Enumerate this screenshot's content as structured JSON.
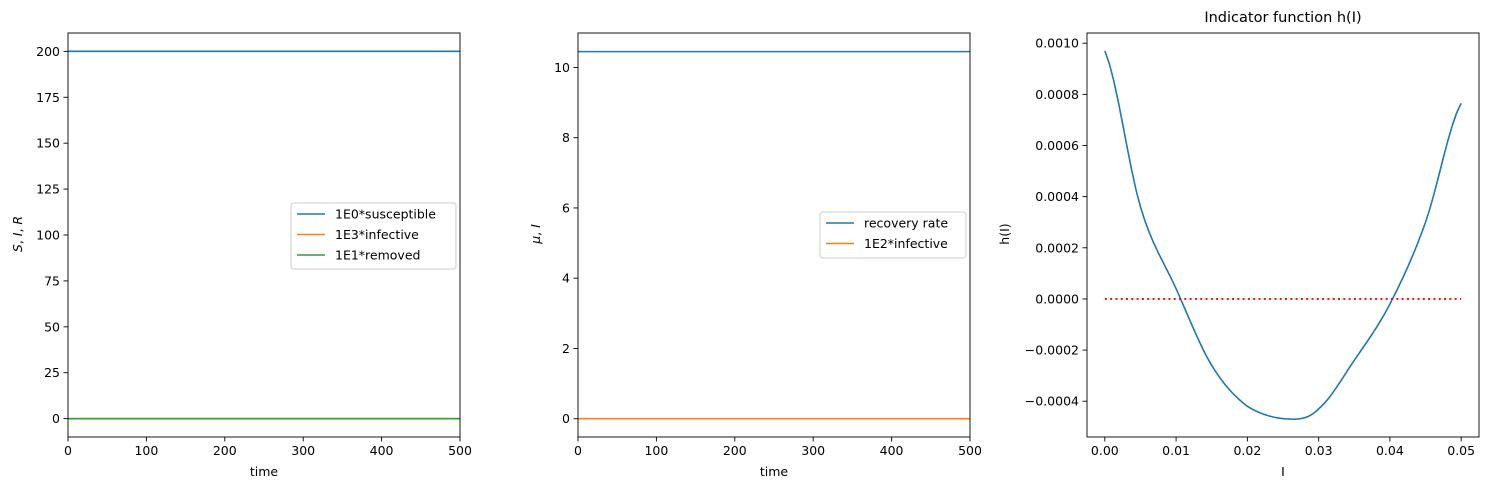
{
  "chart_data": [
    {
      "type": "line",
      "title": "",
      "xlabel": "time",
      "ylabel": "S, I, R",
      "xlim": [
        0,
        500
      ],
      "ylim": [
        -10,
        210
      ],
      "xticks": [
        0,
        100,
        200,
        300,
        400,
        500
      ],
      "yticks": [
        0,
        25,
        50,
        75,
        100,
        125,
        150,
        175,
        200
      ],
      "legend": "center-right",
      "series": [
        {
          "name": "1E0*susceptible",
          "color": "#1f77b4",
          "x": [
            0,
            500
          ],
          "y": [
            200,
            200
          ]
        },
        {
          "name": "1E3*infective",
          "color": "#ff7f0e",
          "x": [
            0,
            500
          ],
          "y": [
            0,
            0
          ]
        },
        {
          "name": "1E1*removed",
          "color": "#2ca02c",
          "x": [
            0,
            500
          ],
          "y": [
            0,
            0
          ]
        }
      ]
    },
    {
      "type": "line",
      "title": "",
      "xlabel": "time",
      "ylabel": "μ, I",
      "xlim": [
        0,
        500
      ],
      "ylim": [
        -0.52,
        10.98
      ],
      "xticks": [
        0,
        100,
        200,
        300,
        400,
        500
      ],
      "yticks": [
        0,
        2,
        4,
        6,
        8,
        10
      ],
      "legend": "center-right",
      "series": [
        {
          "name": "recovery rate",
          "color": "#1f77b4",
          "x": [
            0,
            500
          ],
          "y": [
            10.45,
            10.45
          ]
        },
        {
          "name": "1E2*infective",
          "color": "#ff7f0e",
          "x": [
            0,
            500
          ],
          "y": [
            0,
            0
          ]
        }
      ]
    },
    {
      "type": "line",
      "title": "Indicator function h(I)",
      "xlabel": "I",
      "ylabel": "h(I)",
      "xlim": [
        -0.0025,
        0.0525
      ],
      "ylim": [
        -0.00054,
        0.00104
      ],
      "xticks": [
        0.0,
        0.01,
        0.02,
        0.03,
        0.04,
        0.05
      ],
      "xtick_labels": [
        "0.00",
        "0.01",
        "0.02",
        "0.03",
        "0.04",
        "0.05"
      ],
      "yticks": [
        -0.0004,
        -0.0002,
        0.0,
        0.0002,
        0.0004,
        0.0006,
        0.0008,
        0.001
      ],
      "ytick_labels": [
        "−0.0004",
        "−0.0002",
        "0.0000",
        "0.0002",
        "0.0004",
        "0.0006",
        "0.0008",
        "0.0010"
      ],
      "legend": "none",
      "series": [
        {
          "name": "",
          "color": "#1f77b4",
          "x": [
            0.0,
            0.005,
            0.01,
            0.015,
            0.02,
            0.026,
            0.03,
            0.035,
            0.04,
            0.045,
            0.05
          ],
          "y": [
            0.00097,
            0.00036,
            4e-05,
            -0.00026,
            -0.00042,
            -0.00047,
            -0.00043,
            -0.00024,
            -2e-05,
            0.0003,
            0.000765
          ]
        },
        {
          "name": "",
          "color": "#ff0000",
          "style": "dotted",
          "x": [
            0.0,
            0.05
          ],
          "y": [
            0.0,
            0.0
          ]
        }
      ]
    }
  ]
}
